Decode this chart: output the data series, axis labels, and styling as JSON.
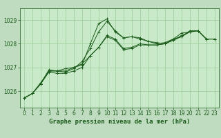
{
  "background_color": "#c0dcc0",
  "plot_bg_color": "#c8eac8",
  "grid_color": "#98c898",
  "line_color": "#1a5c1a",
  "title": "Graphe pression niveau de la mer (hPa)",
  "xlim": [
    -0.5,
    23.5
  ],
  "ylim": [
    1025.3,
    1029.5
  ],
  "yticks": [
    1026,
    1027,
    1028,
    1029
  ],
  "xticks": [
    0,
    1,
    2,
    3,
    4,
    5,
    6,
    7,
    8,
    9,
    10,
    11,
    12,
    13,
    14,
    15,
    16,
    17,
    18,
    19,
    20,
    21,
    22,
    23
  ],
  "series": [
    [
      1025.7,
      1025.9,
      1026.3,
      1026.85,
      1026.85,
      1026.95,
      1027.0,
      1027.1,
      1028.0,
      1028.85,
      1029.05,
      1028.5,
      1028.25,
      1028.3,
      1028.25,
      1028.1,
      1028.05,
      1028.0,
      1028.15,
      1028.3,
      1028.55,
      1028.55,
      1028.2,
      1028.2
    ],
    [
      1025.7,
      1025.9,
      1026.3,
      1026.9,
      1026.85,
      1026.8,
      1026.95,
      1027.25,
      1027.8,
      1028.5,
      1028.95,
      1028.55,
      1028.25,
      1028.3,
      1028.2,
      1028.1,
      1028.0,
      1028.05,
      1028.2,
      1028.45,
      1028.5,
      1028.55,
      1028.2,
      1028.2
    ],
    [
      1025.7,
      1025.9,
      1026.3,
      1026.8,
      1026.75,
      1026.75,
      1026.85,
      1027.0,
      1027.5,
      1027.85,
      1028.35,
      1028.2,
      1027.8,
      1027.85,
      1028.0,
      1027.95,
      1027.95,
      1028.0,
      1028.2,
      1028.3,
      1028.5,
      1028.55,
      1028.2,
      1028.2
    ],
    [
      1025.7,
      1025.9,
      1026.35,
      1026.85,
      1026.85,
      1026.85,
      1027.0,
      1027.15,
      1027.5,
      1027.85,
      1028.3,
      1028.15,
      1027.75,
      1027.8,
      1027.95,
      1027.95,
      1027.95,
      1028.0,
      1028.15,
      1028.35,
      1028.5,
      1028.55,
      1028.2,
      1028.2
    ]
  ],
  "title_fontsize": 6.5,
  "tick_fontsize": 5.5
}
